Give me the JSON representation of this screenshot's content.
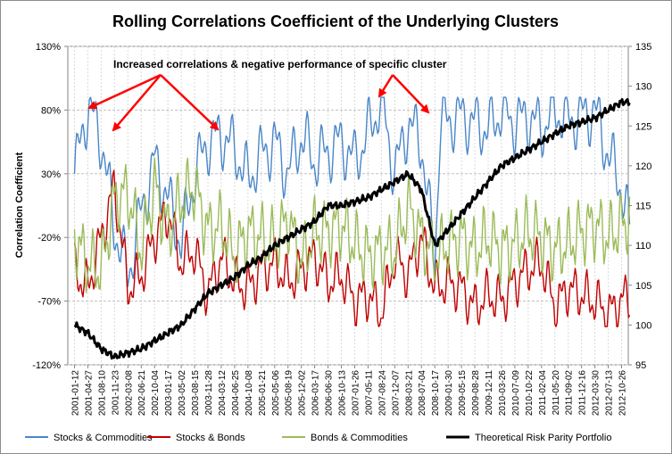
{
  "chart_data": {
    "type": "line",
    "title": "Rolling Correlations Coefficient of the Underlying Clusters",
    "ylabel": "Correlation Coefficient",
    "y_ticks": [
      "130%",
      "80%",
      "30%",
      "-20%",
      "-70%",
      "-120%"
    ],
    "y_ticks_values": [
      130,
      80,
      30,
      -20,
      -70,
      -120
    ],
    "ylim": [
      -120,
      130
    ],
    "y2_ticks": [
      "135",
      "130",
      "125",
      "120",
      "115",
      "110",
      "105",
      "100",
      "95"
    ],
    "y2_ticks_values": [
      135,
      130,
      125,
      120,
      115,
      110,
      105,
      100,
      95
    ],
    "y2lim": [
      95,
      135
    ],
    "x_ticks": [
      "2001-01-12",
      "2001-04-27",
      "2001-08-10",
      "2001-11-23",
      "2002-03-08",
      "2002-06-21",
      "2002-10-04",
      "2003-01-17",
      "2003-05-02",
      "2003-08-15",
      "2003-11-28",
      "2004-03-12",
      "2004-06-25",
      "2004-10-08",
      "2005-01-21",
      "2005-05-06",
      "2005-08-19",
      "2005-12-02",
      "2006-03-17",
      "2006-06-30",
      "2006-10-13",
      "2007-01-26",
      "2007-05-11",
      "2007-08-24",
      "2007-12-07",
      "2008-03-21",
      "2008-07-04",
      "2008-10-17",
      "2009-01-30",
      "2009-05-15",
      "2009-08-28",
      "2009-12-11",
      "2010-03-26",
      "2010-07-09",
      "2010-10-22",
      "2011-02-04",
      "2011-05-20",
      "2011-09-02",
      "2011-12-16",
      "2012-03-30",
      "2012-07-13",
      "2012-10-26"
    ],
    "annotation": "Increased correlations & negative performance of specific cluster",
    "grid": true,
    "legend_position": "bottom",
    "series": [
      {
        "name": "Stocks & Commodities",
        "axis": "left",
        "color": "#4a86c8",
        "anchors": [
          [
            0,
            30
          ],
          [
            1,
            83
          ],
          [
            2,
            58
          ],
          [
            3,
            -12
          ],
          [
            4,
            -50
          ],
          [
            5,
            0
          ],
          [
            6,
            40
          ],
          [
            7,
            10
          ],
          [
            8,
            -25
          ],
          [
            9,
            30
          ],
          [
            10,
            55
          ],
          [
            11,
            60
          ],
          [
            12,
            50
          ],
          [
            13,
            25
          ],
          [
            14,
            45
          ],
          [
            15,
            55
          ],
          [
            16,
            30
          ],
          [
            17,
            60
          ],
          [
            18,
            40
          ],
          [
            19,
            48
          ],
          [
            20,
            55
          ],
          [
            21,
            40
          ],
          [
            22,
            62
          ],
          [
            23,
            88
          ],
          [
            24,
            30
          ],
          [
            25,
            70
          ],
          [
            26,
            55
          ],
          [
            27,
            -40
          ],
          [
            27.4,
            70
          ],
          [
            28,
            72
          ],
          [
            29,
            75
          ],
          [
            30,
            70
          ],
          [
            31,
            65
          ],
          [
            32,
            80
          ],
          [
            33,
            70
          ],
          [
            34,
            75
          ],
          [
            35,
            65
          ],
          [
            36,
            80
          ],
          [
            37,
            72
          ],
          [
            38,
            75
          ],
          [
            39,
            80
          ],
          [
            40,
            45
          ],
          [
            41,
            20
          ],
          [
            41.6,
            -15
          ]
        ]
      },
      {
        "name": "Stocks & Bonds",
        "axis": "left",
        "color": "#c00000",
        "anchors": [
          [
            0,
            -45
          ],
          [
            1,
            -60
          ],
          [
            2,
            -20
          ],
          [
            3,
            20
          ],
          [
            4,
            -60
          ],
          [
            5,
            -50
          ],
          [
            6,
            -20
          ],
          [
            7,
            0
          ],
          [
            8,
            -40
          ],
          [
            9,
            -30
          ],
          [
            10,
            -65
          ],
          [
            11,
            -35
          ],
          [
            12,
            -55
          ],
          [
            13,
            -60
          ],
          [
            14,
            -45
          ],
          [
            15,
            -40
          ],
          [
            16,
            -55
          ],
          [
            17,
            -45
          ],
          [
            18,
            -35
          ],
          [
            19,
            -55
          ],
          [
            20,
            -50
          ],
          [
            21,
            -70
          ],
          [
            22,
            -65
          ],
          [
            23,
            -80
          ],
          [
            24,
            -35
          ],
          [
            25,
            -50
          ],
          [
            26,
            -20
          ],
          [
            27,
            -60
          ],
          [
            28,
            -55
          ],
          [
            29,
            -60
          ],
          [
            30,
            -75
          ],
          [
            31,
            -65
          ],
          [
            32,
            -70
          ],
          [
            33,
            -55
          ],
          [
            34,
            -45
          ],
          [
            35,
            -40
          ],
          [
            36,
            -75
          ],
          [
            37,
            -60
          ],
          [
            38,
            -65
          ],
          [
            39,
            -70
          ],
          [
            40,
            -80
          ],
          [
            41,
            -70
          ],
          [
            41.6,
            -65
          ]
        ]
      },
      {
        "name": "Bonds & Commodities",
        "axis": "left",
        "color": "#9bbb59",
        "anchors": [
          [
            0,
            -20
          ],
          [
            1,
            -40
          ],
          [
            2,
            -45
          ],
          [
            3,
            10
          ],
          [
            4,
            15
          ],
          [
            5,
            -30
          ],
          [
            6,
            20
          ],
          [
            7,
            -15
          ],
          [
            8,
            10
          ],
          [
            9,
            20
          ],
          [
            10,
            -15
          ],
          [
            11,
            -10
          ],
          [
            12,
            -35
          ],
          [
            13,
            -15
          ],
          [
            14,
            -20
          ],
          [
            15,
            -25
          ],
          [
            16,
            -5
          ],
          [
            17,
            -40
          ],
          [
            18,
            -15
          ],
          [
            19,
            -15
          ],
          [
            20,
            -10
          ],
          [
            21,
            -25
          ],
          [
            22,
            -35
          ],
          [
            23,
            -30
          ],
          [
            24,
            -30
          ],
          [
            25,
            5
          ],
          [
            26,
            -20
          ],
          [
            27,
            -35
          ],
          [
            28,
            -25
          ],
          [
            29,
            -20
          ],
          [
            30,
            -30
          ],
          [
            31,
            -20
          ],
          [
            32,
            -30
          ],
          [
            33,
            -25
          ],
          [
            34,
            -15
          ],
          [
            35,
            -20
          ],
          [
            36,
            -30
          ],
          [
            37,
            -25
          ],
          [
            38,
            -15
          ],
          [
            39,
            -10
          ],
          [
            40,
            -20
          ],
          [
            41,
            -10
          ],
          [
            41.6,
            -5
          ]
        ]
      },
      {
        "name": "Theoretical Risk Parity Portfolio",
        "axis": "right",
        "color": "#000000",
        "anchors": [
          [
            0,
            100
          ],
          [
            1,
            99
          ],
          [
            2,
            97
          ],
          [
            3,
            96
          ],
          [
            4,
            96.5
          ],
          [
            5,
            97
          ],
          [
            6,
            98
          ],
          [
            7,
            99
          ],
          [
            8,
            100
          ],
          [
            9,
            102
          ],
          [
            10,
            104
          ],
          [
            11,
            105
          ],
          [
            12,
            106
          ],
          [
            13,
            107.5
          ],
          [
            14,
            108.5
          ],
          [
            15,
            110
          ],
          [
            16,
            111
          ],
          [
            17,
            112
          ],
          [
            18,
            113
          ],
          [
            19,
            115
          ],
          [
            20,
            115
          ],
          [
            21,
            115.5
          ],
          [
            22,
            116
          ],
          [
            23,
            117
          ],
          [
            24,
            118
          ],
          [
            25,
            119
          ],
          [
            26,
            117
          ],
          [
            27,
            110
          ],
          [
            28,
            112
          ],
          [
            29,
            114
          ],
          [
            30,
            116
          ],
          [
            31,
            118
          ],
          [
            32,
            120
          ],
          [
            33,
            121
          ],
          [
            34,
            122
          ],
          [
            35,
            123
          ],
          [
            36,
            124
          ],
          [
            37,
            125
          ],
          [
            38,
            125.5
          ],
          [
            39,
            126
          ],
          [
            40,
            127
          ],
          [
            41,
            128
          ],
          [
            41.6,
            128
          ]
        ]
      }
    ]
  }
}
